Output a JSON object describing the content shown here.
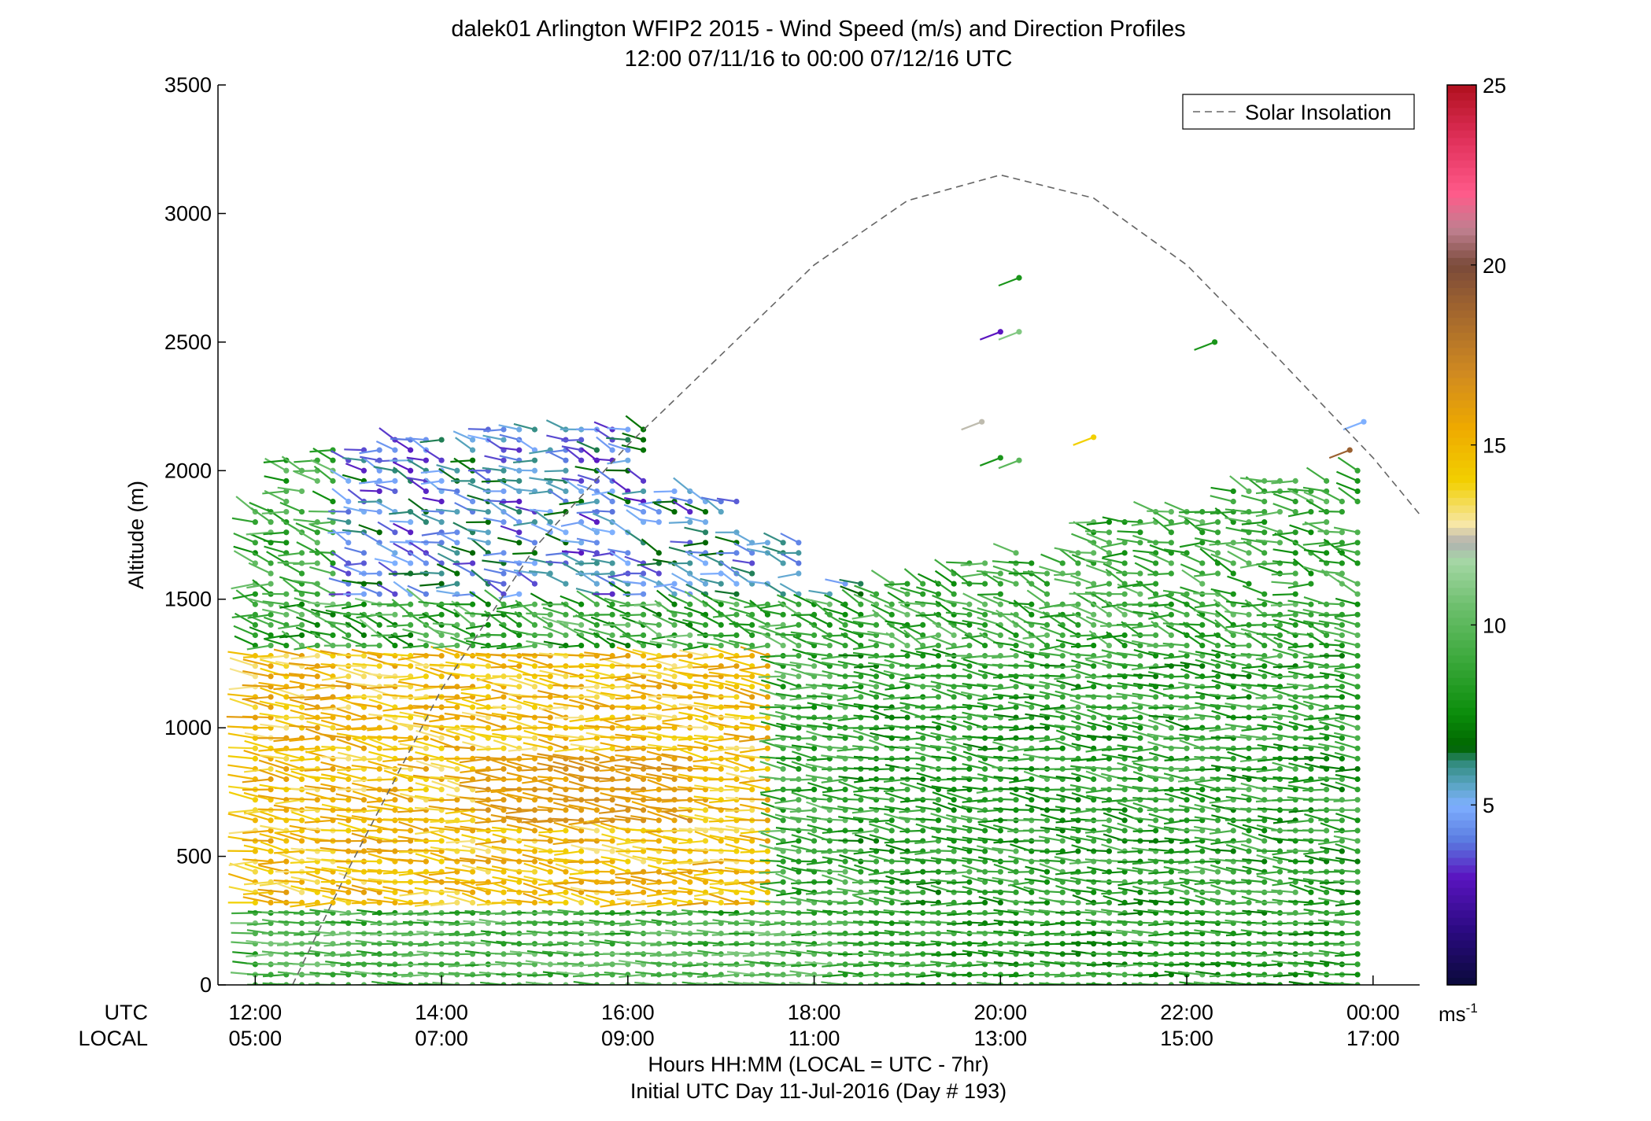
{
  "chart_data": {
    "type": "scatter",
    "subtype": "wind-barb-profile",
    "title": "dalek01 Arlington WFIP2 2015 - Wind Speed (m/s) and Direction Profiles",
    "subtitle": "12:00 07/11/16 to 00:00 07/12/16  UTC",
    "ylabel": "Altitude (m)",
    "xlabel": "Hours HH:MM  (LOCAL = UTC - 7hr)",
    "xlabel2": "Initial UTC Day 11-Jul-2016 (Day # 193)",
    "row_label_utc": "UTC",
    "row_label_local": "LOCAL",
    "ylim": [
      0,
      3500
    ],
    "yticks": [
      "0",
      "500",
      "1000",
      "1500",
      "2000",
      "2500",
      "3000",
      "3500"
    ],
    "xlim_hours": [
      11.6,
      24.5
    ],
    "xticks_utc": [
      "12:00",
      "14:00",
      "16:00",
      "18:00",
      "20:00",
      "22:00",
      "00:00"
    ],
    "xticks_local": [
      "05:00",
      "07:00",
      "09:00",
      "11:00",
      "13:00",
      "15:00",
      "17:00"
    ],
    "legend": {
      "position": "top-right",
      "entries": [
        "Solar Insolation"
      ]
    },
    "colorbar": {
      "range": [
        0,
        25
      ],
      "ticks": [
        "5",
        "10",
        "15",
        "20",
        "25"
      ],
      "unit_base": "ms",
      "unit_exp": "-1"
    },
    "solar_insolation": {
      "style": "dashed",
      "color": "#666666",
      "peak_hour_utc": 20.0,
      "peak_altitude": 3150,
      "points": [
        [
          12.4,
          0
        ],
        [
          13.0,
          450
        ],
        [
          14.0,
          1150
        ],
        [
          15.0,
          1700
        ],
        [
          16.0,
          2100
        ],
        [
          17.0,
          2450
        ],
        [
          18.0,
          2800
        ],
        [
          19.0,
          3050
        ],
        [
          20.0,
          3150
        ],
        [
          21.0,
          3060
        ],
        [
          22.0,
          2800
        ],
        [
          23.0,
          2430
        ],
        [
          24.0,
          2050
        ],
        [
          24.5,
          1830
        ]
      ]
    },
    "series": [
      {
        "field": "wind profile barbs (speed m/s, direction deg)",
        "time_range_utc": [
          "12:00",
          "23:55"
        ],
        "altitude_range_m": [
          0,
          2750
        ],
        "notes": "Speeds mostly 6-16 m/s; 13-16 m/s (yellow/orange) between 300-1300 m from 12:00-17:30 UTC; 6-11 m/s (green) elsewhere; 2-6 m/s (blue/purple) above 1500 m in early afternoon."
      }
    ]
  }
}
